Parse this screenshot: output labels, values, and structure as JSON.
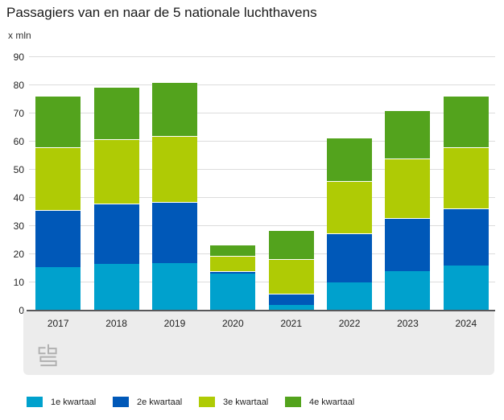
{
  "title": "Passagiers van en naar de 5 nationale luchthavens",
  "unit_label": "x mln",
  "chart_data": {
    "type": "bar",
    "stacked": true,
    "title": "Passagiers van en naar de 5 nationale luchthavens",
    "ylabel": "x mln",
    "xlabel": "",
    "categories": [
      "2017",
      "2018",
      "2019",
      "2020",
      "2021",
      "2022",
      "2023",
      "2024"
    ],
    "series": [
      {
        "name": "1e kwartaal",
        "color": "#00a1cd",
        "values": [
          15.3,
          16.6,
          17.0,
          13.2,
          1.9,
          9.9,
          14.1,
          15.9
        ]
      },
      {
        "name": "2e kwartaal",
        "color": "#0058b8",
        "values": [
          20.4,
          21.3,
          21.7,
          0.8,
          4.1,
          17.5,
          18.9,
          20.3
        ]
      },
      {
        "name": "3e kwartaal",
        "color": "#afcb05",
        "values": [
          22.4,
          22.9,
          23.3,
          5.5,
          12.2,
          18.7,
          20.9,
          21.9
        ]
      },
      {
        "name": "4e kwartaal",
        "color": "#53a31d",
        "values": [
          18.1,
          18.6,
          19.2,
          3.8,
          10.4,
          15.2,
          17.3,
          18.3
        ]
      }
    ],
    "ylim": [
      0,
      90
    ],
    "yticks": [
      0,
      10,
      20,
      30,
      40,
      50,
      60,
      70,
      80,
      90
    ],
    "grid": true,
    "legend_position": "bottom",
    "source_logo": "cbs-logo"
  }
}
